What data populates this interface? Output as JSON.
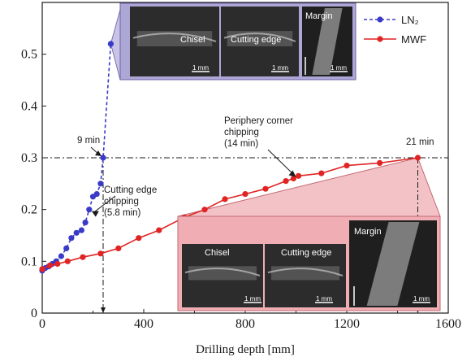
{
  "chart_data": {
    "type": "line",
    "xlabel": "Drilling depth [mm]",
    "ylabel": "",
    "xlim": [
      0,
      1600
    ],
    "ylim": [
      0,
      0.6
    ],
    "x_ticks": [
      0,
      400,
      800,
      1200,
      1600
    ],
    "y_ticks": [
      0,
      0.1,
      0.2,
      0.3,
      0.4,
      0.5
    ],
    "grid": false,
    "legend_placement": "top-right",
    "series": [
      {
        "name": "LN₂",
        "color": "#3a3ac8",
        "style": "dashed",
        "marker": "circle",
        "x": [
          0,
          12,
          25,
          40,
          55,
          75,
          95,
          115,
          135,
          155,
          170,
          185,
          200,
          215,
          230,
          240,
          270
        ],
        "y": [
          0.082,
          0.087,
          0.09,
          0.095,
          0.1,
          0.11,
          0.125,
          0.145,
          0.155,
          0.16,
          0.175,
          0.2,
          0.225,
          0.23,
          0.25,
          0.3,
          0.52
        ]
      },
      {
        "name": "MWF",
        "color": "#e02424",
        "style": "solid",
        "marker": "circle",
        "x": [
          0,
          30,
          60,
          100,
          160,
          230,
          300,
          380,
          460,
          560,
          640,
          720,
          800,
          880,
          960,
          990,
          1010,
          1100,
          1200,
          1330,
          1480
        ],
        "y": [
          0.085,
          0.092,
          0.095,
          0.1,
          0.108,
          0.115,
          0.125,
          0.145,
          0.16,
          0.185,
          0.2,
          0.22,
          0.23,
          0.24,
          0.255,
          0.26,
          0.265,
          0.27,
          0.285,
          0.29,
          0.3
        ]
      }
    ],
    "annotations": {
      "ln2_end": "9 min",
      "mwf_end": "21 min",
      "ln2_chip_line1": "Cutting edge",
      "ln2_chip_line2": "chipping",
      "ln2_chip_line3": "(5.8 min)",
      "mwf_chip_line1": "Periphery corner",
      "mwf_chip_line2": "chipping",
      "mwf_chip_line3": "(14 min)"
    },
    "inset_top": {
      "label_chisel": "Chisel",
      "label_edge": "Cutting edge",
      "label_margin": "Margin",
      "scale": "1 mm"
    },
    "inset_bottom": {
      "label_chisel": "Chisel",
      "label_edge": "Cutting edge",
      "label_margin": "Margin",
      "scale": "1 mm"
    },
    "ref_y": 0.3,
    "ref_x": [
      240,
      1480
    ]
  }
}
